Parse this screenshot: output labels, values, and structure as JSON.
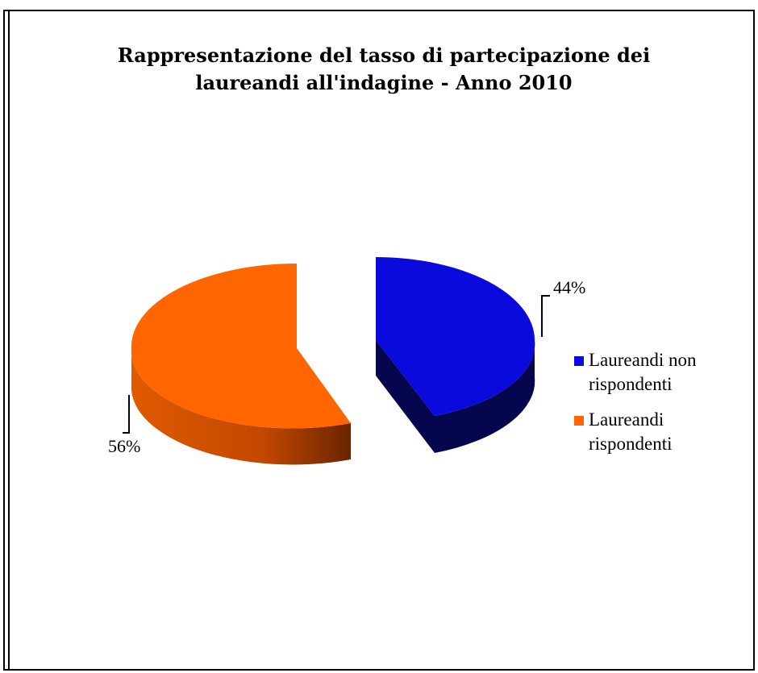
{
  "chart_data": {
    "type": "pie",
    "title_lines": [
      "Rappresentazione del tasso di partecipazione dei",
      "laureandi all'indagine - Anno 2010"
    ],
    "slices": [
      {
        "name": "Laureandi non rispondenti",
        "value": 44,
        "label": "44%",
        "color": "#0a0adc",
        "side_color": "#06064e"
      },
      {
        "name": "Laureandi rispondenti",
        "value": 56,
        "label": "56%",
        "color": "#ff6600",
        "side_color": "#c44a00"
      }
    ],
    "legend": [
      {
        "text": "Laureandi non rispondenti",
        "color": "#0a0adc"
      },
      {
        "text": "Laureandi rispondenti",
        "color": "#ff6600"
      }
    ],
    "legend_position": "right",
    "style": "3d-exploded"
  }
}
